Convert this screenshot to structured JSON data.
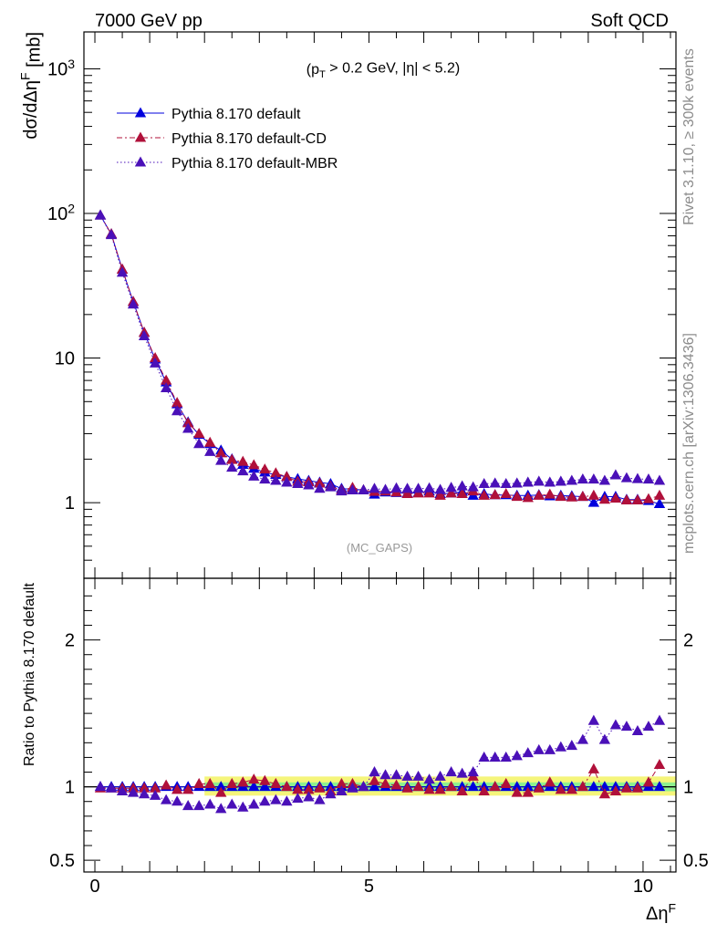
{
  "header": {
    "left": "7000 GeV pp",
    "right": "Soft QCD"
  },
  "side_labels": {
    "rivet": "Rivet 3.1.10, ≥ 300k events",
    "source": "mcplots.cern.ch [arXiv:1306.3436]"
  },
  "annotations": {
    "cuts": "(p_T > 0.2 GeV, |η| < 5.2)",
    "analysis": "(MC_GAPS)"
  },
  "colors": {
    "default": "#0000dd",
    "cd": "#b0103a",
    "mbr": "#4a10b8",
    "band_inner": "#8ef08e",
    "band_outer": "#f5f57a"
  },
  "chart_data": [
    {
      "type": "line",
      "panel": "main",
      "ylabel": "dσ/dΔη^F [mb]",
      "xlabel": "",
      "yscale": "log",
      "xlim": [
        -0.2,
        10.6
      ],
      "ylim": [
        0.3,
        1800
      ],
      "y_ticks": [
        1,
        10,
        100,
        1000
      ],
      "y_tick_labels": [
        "1",
        "10",
        "10^2",
        "10^3"
      ],
      "legend_position": "top-left",
      "x": [
        0.1,
        0.3,
        0.5,
        0.7,
        0.9,
        1.1,
        1.3,
        1.5,
        1.7,
        1.9,
        2.1,
        2.3,
        2.5,
        2.7,
        2.9,
        3.1,
        3.3,
        3.5,
        3.7,
        3.9,
        4.1,
        4.3,
        4.5,
        4.7,
        4.9,
        5.1,
        5.3,
        5.5,
        5.7,
        5.9,
        6.1,
        6.3,
        6.5,
        6.7,
        6.9,
        7.1,
        7.3,
        7.5,
        7.7,
        7.9,
        8.1,
        8.3,
        8.5,
        8.7,
        8.9,
        9.1,
        9.3,
        9.5,
        9.7,
        9.9,
        10.1,
        10.3
      ],
      "series": [
        {
          "name": "Pythia 8.170 default",
          "line": "solid",
          "values": [
            97,
            72,
            41,
            24.5,
            15,
            9.8,
            6.8,
            4.8,
            3.6,
            2.95,
            2.55,
            2.3,
            2.0,
            1.83,
            1.72,
            1.62,
            1.56,
            1.51,
            1.46,
            1.42,
            1.38,
            1.35,
            1.25,
            1.24,
            1.22,
            1.14,
            1.18,
            1.17,
            1.16,
            1.17,
            1.2,
            1.15,
            1.16,
            1.19,
            1.12,
            1.15,
            1.13,
            1.13,
            1.12,
            1.12,
            1.13,
            1.11,
            1.12,
            1.11,
            1.1,
            1.0,
            1.1,
            1.1,
            1.05,
            1.05,
            1.03,
            0.98
          ]
        },
        {
          "name": "Pythia 8.170 default-CD",
          "line": "dashdot",
          "values": [
            97,
            72,
            41,
            24.5,
            15,
            10.0,
            7.0,
            4.9,
            3.55,
            3.0,
            2.6,
            2.2,
            1.98,
            1.92,
            1.82,
            1.7,
            1.6,
            1.51,
            1.4,
            1.39,
            1.36,
            1.3,
            1.22,
            1.27,
            1.22,
            1.19,
            1.2,
            1.18,
            1.15,
            1.16,
            1.16,
            1.12,
            1.16,
            1.15,
            1.2,
            1.12,
            1.13,
            1.15,
            1.1,
            1.08,
            1.12,
            1.14,
            1.1,
            1.09,
            1.1,
            1.12,
            1.05,
            1.07,
            1.04,
            1.04,
            1.06,
            1.12
          ]
        },
        {
          "name": "Pythia 8.170 default-MBR",
          "line": "dotted",
          "values": [
            97,
            71,
            39,
            23.5,
            14.2,
            9.2,
            6.2,
            4.3,
            3.25,
            2.55,
            2.25,
            1.95,
            1.75,
            1.65,
            1.52,
            1.45,
            1.42,
            1.38,
            1.35,
            1.32,
            1.25,
            1.28,
            1.2,
            1.22,
            1.22,
            1.25,
            1.23,
            1.26,
            1.25,
            1.25,
            1.26,
            1.23,
            1.27,
            1.3,
            1.28,
            1.35,
            1.36,
            1.35,
            1.36,
            1.38,
            1.4,
            1.38,
            1.4,
            1.42,
            1.45,
            1.45,
            1.42,
            1.55,
            1.48,
            1.46,
            1.45,
            1.42
          ]
        }
      ]
    },
    {
      "type": "line",
      "panel": "ratio",
      "ylabel": "Ratio to Pythia 8.170 default",
      "xlabel": "Δη^F",
      "xlim": [
        -0.2,
        10.6
      ],
      "ylim": [
        0.42,
        2.42
      ],
      "x_ticks": [
        0,
        5,
        10
      ],
      "y_ticks": [
        0.5,
        1,
        2
      ],
      "reference_band": {
        "inner": [
          0.97,
          1.03
        ],
        "outer": [
          0.94,
          1.07
        ],
        "x_start": 2.0
      },
      "x": [
        0.1,
        0.3,
        0.5,
        0.7,
        0.9,
        1.1,
        1.3,
        1.5,
        1.7,
        1.9,
        2.1,
        2.3,
        2.5,
        2.7,
        2.9,
        3.1,
        3.3,
        3.5,
        3.7,
        3.9,
        4.1,
        4.3,
        4.5,
        4.7,
        4.9,
        5.1,
        5.3,
        5.5,
        5.7,
        5.9,
        6.1,
        6.3,
        6.5,
        6.7,
        6.9,
        7.1,
        7.3,
        7.5,
        7.7,
        7.9,
        8.1,
        8.3,
        8.5,
        8.7,
        8.9,
        9.1,
        9.3,
        9.5,
        9.7,
        9.9,
        10.1,
        10.3
      ],
      "series": [
        {
          "name": "Pythia 8.170 default",
          "line": "solid",
          "values": [
            1,
            1,
            1,
            1,
            1,
            1,
            1,
            1,
            1,
            1,
            1,
            1,
            1,
            1,
            1,
            1,
            1,
            1,
            1,
            1,
            1,
            1,
            1,
            1,
            1,
            1,
            1,
            1,
            1,
            1,
            1,
            1,
            1,
            1,
            1,
            1,
            1,
            1,
            1,
            1,
            1,
            1,
            1,
            1,
            1,
            1,
            1,
            1,
            1,
            1,
            1,
            1
          ]
        },
        {
          "name": "Pythia 8.170 default-CD",
          "line": "dashdot",
          "values": [
            0.99,
            0.99,
            0.99,
            0.99,
            0.99,
            0.99,
            1.01,
            0.98,
            0.98,
            1.02,
            1.02,
            0.96,
            1.02,
            1.03,
            1.05,
            1.04,
            1.02,
            1.0,
            0.98,
            0.98,
            0.99,
            0.97,
            1.02,
            1.02,
            1.0,
            1.04,
            1.02,
            1.01,
            0.99,
            1.0,
            0.98,
            0.98,
            1.0,
            0.97,
            1.07,
            0.97,
            1.0,
            1.02,
            0.96,
            0.96,
            0.99,
            1.03,
            0.98,
            0.98,
            1.0,
            1.12,
            0.95,
            0.97,
            0.99,
            0.99,
            1.03,
            1.15
          ]
        },
        {
          "name": "Pythia 8.170 default-MBR",
          "line": "dotted",
          "values": [
            1.0,
            0.99,
            0.97,
            0.96,
            0.95,
            0.94,
            0.91,
            0.9,
            0.87,
            0.87,
            0.88,
            0.85,
            0.88,
            0.86,
            0.88,
            0.9,
            0.91,
            0.9,
            0.92,
            0.93,
            0.91,
            0.95,
            0.97,
            0.99,
            1.0,
            1.1,
            1.08,
            1.08,
            1.07,
            1.07,
            1.05,
            1.07,
            1.1,
            1.09,
            1.1,
            1.2,
            1.2,
            1.2,
            1.21,
            1.23,
            1.25,
            1.25,
            1.27,
            1.28,
            1.32,
            1.45,
            1.32,
            1.42,
            1.41,
            1.38,
            1.41,
            1.45
          ]
        }
      ]
    }
  ]
}
